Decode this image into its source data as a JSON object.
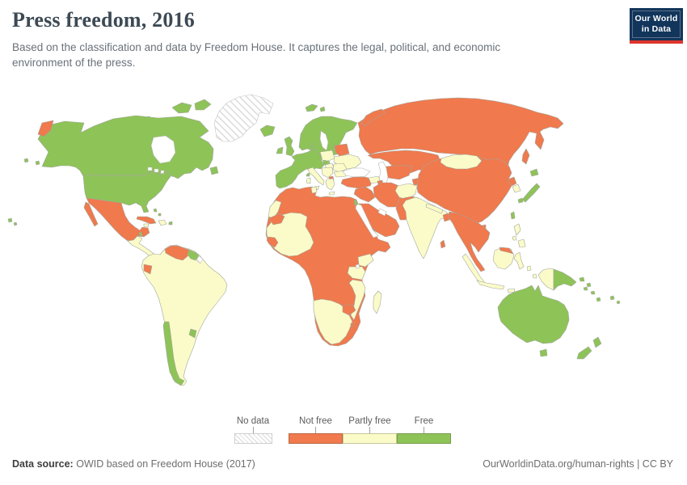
{
  "header": {
    "title": "Press freedom, 2016",
    "subtitle": "Based on the classification and data by Freedom House. It captures the legal, political, and economic environment of the press.",
    "logo": {
      "line1": "Our World",
      "line2": "in Data"
    }
  },
  "legend": {
    "no_data_label": "No data",
    "not_free_label": "Not free",
    "partly_free_label": "Partly free",
    "free_label": "Free"
  },
  "footer": {
    "source_label": "Data source:",
    "source_text": "OWID based on Freedom House (2017)",
    "link_text": "OurWorldinData.org/human-rights | CC BY"
  },
  "colors": {
    "free": "#8ec358",
    "partly_free": "#fbfbc9",
    "not_free": "#f0794d",
    "water": "#ffffff",
    "hatch_line": "#d9d9d9",
    "border": "#a2a79e",
    "water_border": "#b3b8b0",
    "hatch_border": "#c6c6c6",
    "logo_navy": "#12355b",
    "logo_red": "#dc352c"
  },
  "map": {
    "regions": {
      "greenland": "no_data",
      "ellesmere-1": "free",
      "ellesmere-2": "free",
      "victoria-island": "free",
      "baffin-island": "free",
      "canada-usa": "free",
      "hudson-bay": "water",
      "great-lakes-1": "water",
      "great-lakes-2": "water",
      "great-lakes-3": "water",
      "newfoundland": "free",
      "chukotka": "not_free",
      "aleutians-1": "free",
      "aleutians-2": "free",
      "hawaii-1": "free",
      "hawaii-2": "free",
      "mexico": "not_free",
      "baja-california": "not_free",
      "central-america": "partly_free",
      "costa-rica": "free",
      "belize": "free",
      "cuba": "not_free",
      "jamaica": "partly_free",
      "hispaniola": "partly_free",
      "puerto-rico": "free",
      "bahamas-1": "free",
      "bahamas-2": "free",
      "south-america": "partly_free",
      "venezuela": "not_free",
      "guyana-suriname": "free",
      "french-guiana": "no_data",
      "ecuador": "not_free",
      "chile": "free",
      "uruguay": "free",
      "iceland": "free",
      "svalbard-1": "free",
      "svalbard-2": "free",
      "united-kingdom": "free",
      "ireland": "free",
      "scandinavia": "free",
      "gulf-of-bothnia": "water",
      "baltics": "free",
      "denmark": "free",
      "western-europe": "free",
      "czechia": "free",
      "poland": "partly_free",
      "belarus": "not_free",
      "ukraine": "partly_free",
      "hungary": "partly_free",
      "romania": "partly_free",
      "bulgaria": "partly_free",
      "balkans": "partly_free",
      "macedonia": "not_free",
      "greece": "partly_free",
      "crete": "partly_free",
      "italy": "partly_free",
      "sicily": "partly_free",
      "sardinia": "partly_free",
      "corsica": "free",
      "africa": "not_free",
      "western-sahara": "partly_free",
      "sahel-west-africa": "partly_free",
      "mauritania": "not_free",
      "guinea": "not_free",
      "tunisia": "partly_free",
      "kenya": "partly_free",
      "tanzania": "partly_free",
      "mozambique": "partly_free",
      "southern-africa": "partly_free",
      "zimbabwe": "not_free",
      "swaziland": "not_free",
      "madagascar": "partly_free",
      "lake-victoria": "water",
      "russia": "not_free",
      "novaya-zemlya": "not_free",
      "sakhalin": "not_free",
      "kazakhstan": "not_free",
      "central-asia": "not_free",
      "tajikistan": "not_free",
      "caspian-sea": "water",
      "black-sea": "water",
      "turkey": "not_free",
      "caucasus": "partly_free",
      "azerbaijan": "not_free",
      "cyprus": "free",
      "syria-iraq": "not_free",
      "arabia": "not_free",
      "red-sea": "water",
      "persian-gulf": "water",
      "israel": "free",
      "china": "not_free",
      "mongolia": "partly_free",
      "iran": "not_free",
      "afghanistan": "partly_free",
      "pakistan": "not_free",
      "india": "partly_free",
      "nepal": "partly_free",
      "bangladesh": "not_free",
      "sri-lanka": "not_free",
      "north-korea": "not_free",
      "south-korea": "partly_free",
      "hokkaido": "free",
      "honshu": "free",
      "kyushu": "free",
      "taiwan": "free",
      "hainan": "not_free",
      "southeast-asia": "not_free",
      "sumatra": "partly_free",
      "java": "partly_free",
      "borneo": "partly_free",
      "malaysia-borneo": "not_free",
      "sulawesi": "partly_free",
      "moluccas-1": "partly_free",
      "moluccas-2": "partly_free",
      "lesser-sunda-1": "partly_free",
      "lesser-sunda-2": "partly_free",
      "timor": "partly_free",
      "philippines-1": "partly_free",
      "philippines-2": "partly_free",
      "philippines-3": "partly_free",
      "west-papua": "partly_free",
      "papua-new-guinea": "free",
      "new-britain-1": "free",
      "new-britain-2": "free",
      "solomon-1": "free",
      "solomon-2": "free",
      "vanuatu": "free",
      "fiji-1": "free",
      "fiji-2": "free",
      "australia": "free",
      "tasmania": "free",
      "new-zealand-north": "free",
      "new-zealand-south": "free"
    }
  },
  "chart_data": {
    "type": "choropleth_map",
    "title": "Press freedom, 2016",
    "legend_position": "bottom",
    "categories": [
      {
        "label": "No data",
        "style": "hatched",
        "examples": [
          "Greenland",
          "French Guiana"
        ]
      },
      {
        "label": "Not free",
        "color": "#f0794d",
        "examples": [
          "Mexico",
          "Cuba",
          "Venezuela",
          "Ecuador",
          "Russia",
          "Belarus",
          "Turkey",
          "Kazakhstan",
          "Uzbekistan",
          "Turkmenistan",
          "Azerbaijan",
          "Iran",
          "Iraq",
          "Syria",
          "Saudi Arabia",
          "Yemen",
          "Egypt",
          "Libya",
          "Algeria",
          "Morocco",
          "Mauritania",
          "Guinea",
          "Chad",
          "Sudan",
          "Ethiopia",
          "Somalia",
          "DR Congo",
          "Angola",
          "Zambia",
          "Zimbabwe",
          "Swaziland",
          "China",
          "North Korea",
          "Pakistan",
          "Bangladesh",
          "Sri Lanka",
          "Myanmar",
          "Thailand",
          "Laos",
          "Vietnam",
          "Cambodia",
          "Malaysia"
        ]
      },
      {
        "label": "Partly free",
        "color": "#fbfbc9",
        "examples": [
          "Colombia",
          "Brazil",
          "Peru",
          "Bolivia",
          "Paraguay",
          "Argentina",
          "Guatemala",
          "Honduras",
          "Nicaragua",
          "Dominican Republic",
          "Italy",
          "Poland",
          "Hungary",
          "Romania",
          "Serbia",
          "Bulgaria",
          "Greece",
          "Ukraine",
          "Georgia",
          "Mongolia",
          "India",
          "Nepal",
          "South Korea",
          "Indonesia",
          "Philippines",
          "Senegal",
          "Mali",
          "Niger",
          "Nigeria",
          "Ivory Coast",
          "Kenya",
          "Tanzania",
          "Mozambique",
          "Namibia",
          "Botswana",
          "South Africa",
          "Madagascar",
          "Afghanistan"
        ]
      },
      {
        "label": "Free",
        "color": "#8ec358",
        "examples": [
          "United States",
          "Canada",
          "Chile",
          "Uruguay",
          "Guyana",
          "Suriname",
          "Iceland",
          "United Kingdom",
          "Ireland",
          "Norway",
          "Sweden",
          "Finland",
          "Denmark",
          "Germany",
          "France",
          "Spain",
          "Portugal",
          "Estonia",
          "Latvia",
          "Lithuania",
          "Czechia",
          "Israel",
          "Cyprus",
          "Japan",
          "Taiwan",
          "Papua New Guinea",
          "Australia",
          "New Zealand"
        ]
      }
    ]
  }
}
